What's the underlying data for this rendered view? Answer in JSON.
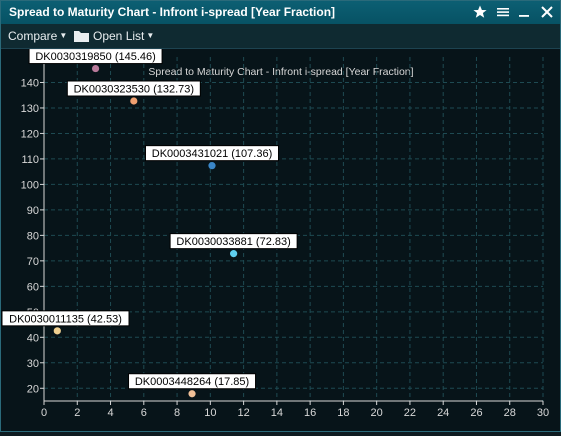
{
  "window": {
    "title": "Spread to Maturity Chart - Infront i-spread [Year Fraction]"
  },
  "toolbar": {
    "compare_label": "Compare",
    "open_list_label": "Open List"
  },
  "chart_data": {
    "type": "scatter",
    "title": "Spread to Maturity Chart - Infront i-spread [Year Fraction]",
    "xlim": [
      0,
      30
    ],
    "ylim": [
      15,
      150
    ],
    "x_ticks": [
      0,
      2,
      4,
      6,
      8,
      10,
      12,
      14,
      16,
      18,
      20,
      22,
      24,
      26,
      28,
      30
    ],
    "y_ticks": [
      20,
      30,
      40,
      50,
      60,
      70,
      80,
      90,
      100,
      110,
      120,
      130,
      140
    ],
    "grid": true,
    "points": [
      {
        "label": "DK0030319850 (145.46)",
        "x": 3.1,
        "y": 145.46,
        "color": "#b87a9a"
      },
      {
        "label": "DK0030323530 (132.73)",
        "x": 5.4,
        "y": 132.73,
        "color": "#f0a070"
      },
      {
        "label": "DK0003431021 (107.36)",
        "x": 10.1,
        "y": 107.36,
        "color": "#3a86c8"
      },
      {
        "label": "DK0030033881 (72.83)",
        "x": 11.4,
        "y": 72.83,
        "color": "#5fd0f0"
      },
      {
        "label": "DK0030011135 (42.53)",
        "x": 0.8,
        "y": 42.53,
        "color": "#f0d090"
      },
      {
        "label": "DK0003448264 (17.85)",
        "x": 8.9,
        "y": 17.85,
        "color": "#f0c098"
      }
    ],
    "colors": {
      "background": "#071419",
      "grid": "#1e4a52",
      "axis": "#d8d8d8",
      "label_box_bg": "#ffffff",
      "label_text": "#000000"
    }
  }
}
